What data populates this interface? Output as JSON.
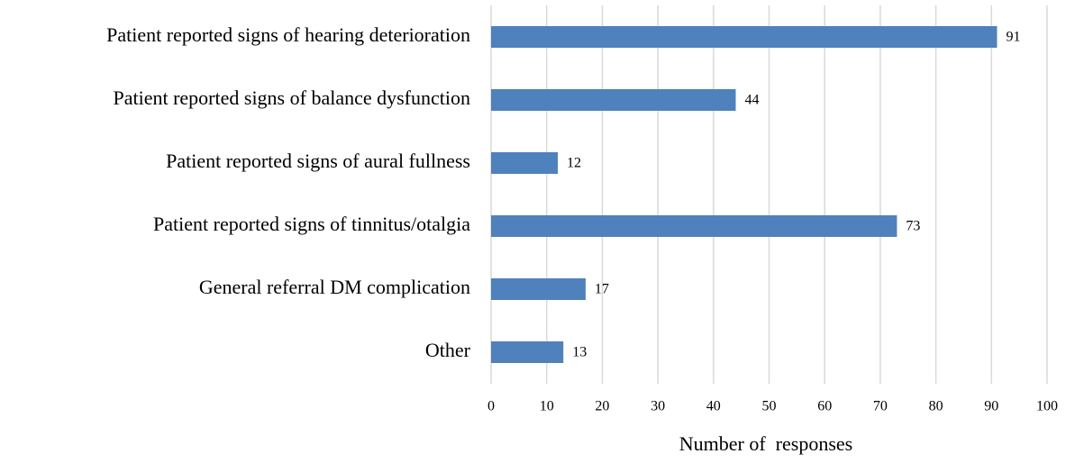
{
  "chart_data": {
    "type": "bar",
    "orientation": "horizontal",
    "categories": [
      "Patient reported signs of hearing deterioration",
      "Patient reported signs of balance dysfunction",
      "Patient reported signs of aural fullness",
      "Patient reported signs of tinnitus/otalgia",
      "General referral DM complication",
      "Other"
    ],
    "values": [
      91,
      44,
      12,
      73,
      17,
      13
    ],
    "color": "#4f81bd",
    "xlabel": "Number of  responses",
    "xlim": [
      0,
      100
    ],
    "xticks": [
      0,
      10,
      20,
      30,
      40,
      50,
      60,
      70,
      80,
      90,
      100
    ],
    "grid": true
  }
}
